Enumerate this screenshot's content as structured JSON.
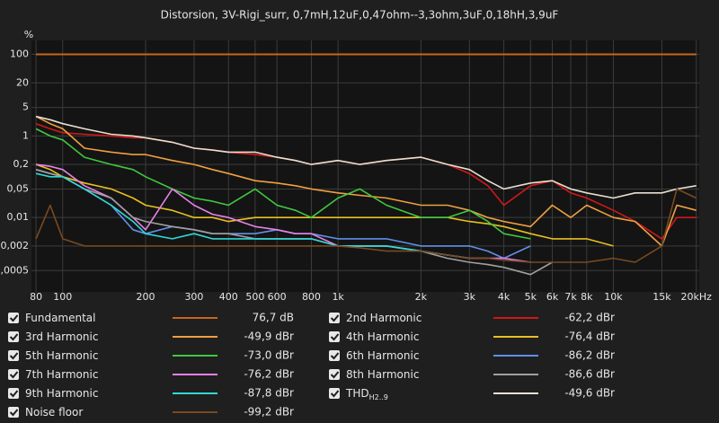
{
  "chart_data": {
    "type": "line",
    "title": "Distorsion, 3V-Rigi_surr, 0,7mH,12uF,0,47ohm--3,3ohm,3uF,0,18hH,3,9uF",
    "y_unit": "%",
    "log_x": true,
    "log_y": true,
    "grid": true,
    "xlim": [
      77,
      20500
    ],
    "ylim": [
      0.00015,
      220
    ],
    "xticks": [
      80,
      100,
      200,
      300,
      400,
      500,
      600,
      800,
      {
        "value": 1000,
        "label": "1k"
      },
      {
        "value": 2000,
        "label": "2k"
      },
      {
        "value": 3000,
        "label": "3k"
      },
      {
        "value": 4000,
        "label": "4k"
      },
      {
        "value": 5000,
        "label": "5k"
      },
      {
        "value": 6000,
        "label": "6k"
      },
      {
        "value": 7000,
        "label": "7k"
      },
      {
        "value": 8000,
        "label": "8k"
      },
      {
        "value": 10000,
        "label": "10k"
      },
      {
        "value": 15000,
        "label": "15k"
      },
      {
        "value": 20000,
        "label": "20kHz"
      }
    ],
    "yticks": [
      100,
      20,
      5,
      1,
      {
        "value": 0.2,
        "label": "0,2"
      },
      {
        "value": 0.05,
        "label": "0,05"
      },
      {
        "value": 0.01,
        "label": "0,01"
      },
      {
        "value": 0.002,
        "label": "0,002"
      },
      {
        "value": 0.0005,
        "label": "0,0005"
      }
    ],
    "x": [
      80,
      90,
      100,
      120,
      150,
      180,
      200,
      250,
      300,
      350,
      400,
      500,
      600,
      700,
      800,
      1000,
      1200,
      1500,
      2000,
      2500,
      3000,
      3500,
      4000,
      5000,
      6000,
      7000,
      8000,
      10000,
      12000,
      15000,
      17000,
      20000
    ],
    "series": [
      {
        "name": "Fundamental",
        "color": "#c8641e",
        "legend_value": "76,7 dB",
        "values": [
          100,
          100,
          100,
          100,
          100,
          100,
          100,
          100,
          100,
          100,
          100,
          100,
          100,
          100,
          100,
          100,
          100,
          100,
          100,
          100,
          100,
          100,
          100,
          100,
          100,
          100,
          100,
          100,
          100,
          100,
          100,
          100
        ]
      },
      {
        "name": "2nd Harmonic",
        "color": "#d01818",
        "legend_value": "-62,2 dBr",
        "values": [
          2,
          1.5,
          1.2,
          1.1,
          1.0,
          0.9,
          0.9,
          0.7,
          0.5,
          0.45,
          0.4,
          0.35,
          0.3,
          0.25,
          0.2,
          0.25,
          0.2,
          0.25,
          0.3,
          0.2,
          0.12,
          0.06,
          0.02,
          0.06,
          0.08,
          0.04,
          0.03,
          0.015,
          0.008,
          0.003,
          0.01,
          0.01
        ]
      },
      {
        "name": "3rd Harmonic",
        "color": "#f0a040",
        "legend_value": "-49,9 dBr",
        "values": [
          3,
          2,
          1.5,
          0.5,
          0.4,
          0.35,
          0.35,
          0.25,
          0.2,
          0.15,
          0.12,
          0.08,
          0.07,
          0.06,
          0.05,
          0.04,
          0.035,
          0.03,
          0.02,
          0.02,
          0.015,
          0.01,
          0.008,
          0.006,
          0.02,
          0.01,
          0.02,
          0.01,
          0.008,
          0.002,
          0.02,
          0.015
        ]
      },
      {
        "name": "4th Harmonic",
        "color": "#e8c020",
        "legend_value": "-76,4 dBr",
        "values": [
          0.2,
          0.15,
          0.1,
          0.07,
          0.05,
          0.03,
          0.02,
          0.015,
          0.01,
          0.01,
          0.008,
          0.01,
          0.01,
          0.01,
          0.01,
          0.01,
          0.01,
          0.01,
          0.01,
          0.01,
          0.008,
          0.007,
          0.006,
          0.004,
          0.003,
          0.003,
          0.003,
          0.002,
          null,
          null,
          null,
          null
        ]
      },
      {
        "name": "5th Harmonic",
        "color": "#40c840",
        "legend_value": "-73,0 dBr",
        "values": [
          1.5,
          1.0,
          0.8,
          0.3,
          0.2,
          0.15,
          0.1,
          0.05,
          0.03,
          0.025,
          0.02,
          0.05,
          0.02,
          0.015,
          0.01,
          0.03,
          0.05,
          0.02,
          0.01,
          0.01,
          0.015,
          0.008,
          0.004,
          0.003,
          null,
          null,
          null,
          null,
          null,
          null,
          null,
          null
        ]
      },
      {
        "name": "6th Harmonic",
        "color": "#6090e8",
        "legend_value": "-86,2 dBr",
        "values": [
          0.15,
          0.12,
          0.1,
          0.05,
          0.02,
          0.005,
          0.004,
          0.006,
          0.005,
          0.004,
          0.004,
          0.004,
          0.005,
          0.004,
          0.004,
          0.003,
          0.003,
          0.003,
          0.002,
          0.002,
          0.002,
          0.0015,
          0.001,
          0.002,
          null,
          null,
          null,
          null,
          null,
          null,
          null,
          null
        ]
      },
      {
        "name": "7th Harmonic",
        "color": "#e880e8",
        "legend_value": "-76,2 dBr",
        "values": [
          0.2,
          0.18,
          0.15,
          0.06,
          0.03,
          0.01,
          0.005,
          0.05,
          0.02,
          0.012,
          0.01,
          0.006,
          0.005,
          0.004,
          0.004,
          0.002,
          0.002,
          0.002,
          0.0015,
          0.0012,
          0.001,
          0.001,
          0.001,
          0.0008,
          null,
          null,
          null,
          null,
          null,
          null,
          null,
          null
        ]
      },
      {
        "name": "8th Harmonic",
        "color": "#a0a0a0",
        "legend_value": "-86,6 dBr",
        "values": [
          0.15,
          0.12,
          0.1,
          0.05,
          0.03,
          0.01,
          0.008,
          0.006,
          0.005,
          0.004,
          0.004,
          0.003,
          0.003,
          0.003,
          0.003,
          0.002,
          0.002,
          0.002,
          0.0015,
          0.001,
          0.0008,
          0.0007,
          0.0006,
          0.0004,
          0.0008,
          null,
          null,
          null,
          null,
          null,
          null,
          null
        ]
      },
      {
        "name": "9th Harmonic",
        "color": "#30d8d8",
        "legend_value": "-87,8 dBr",
        "values": [
          0.12,
          0.1,
          0.1,
          0.05,
          0.02,
          0.008,
          0.004,
          0.003,
          0.004,
          0.003,
          0.003,
          0.003,
          0.003,
          0.003,
          0.003,
          0.002,
          0.002,
          0.002,
          0.0015,
          0.0012,
          0.001,
          null,
          null,
          null,
          null,
          null,
          null,
          null,
          null,
          null,
          null,
          null
        ]
      },
      {
        "name": "THD",
        "name_sub": "H2..9",
        "color": "#e8e0d0",
        "legend_value": "-49,6 dBr",
        "values": [
          3,
          2.5,
          2,
          1.5,
          1.1,
          1.0,
          0.9,
          0.7,
          0.5,
          0.45,
          0.4,
          0.4,
          0.3,
          0.25,
          0.2,
          0.25,
          0.2,
          0.25,
          0.3,
          0.2,
          0.15,
          0.08,
          0.05,
          0.07,
          0.08,
          0.05,
          0.04,
          0.03,
          0.04,
          0.04,
          0.05,
          0.06
        ]
      },
      {
        "name": "Noise floor",
        "color": "#7a4a20",
        "legend_value": "-99,2 dBr",
        "values": [
          0.003,
          0.02,
          0.003,
          0.002,
          0.002,
          0.002,
          0.002,
          0.002,
          0.002,
          0.002,
          0.002,
          0.002,
          0.002,
          0.002,
          0.002,
          0.002,
          0.0018,
          0.0015,
          0.0015,
          0.0012,
          0.001,
          0.001,
          0.0009,
          0.0008,
          0.0008,
          0.0008,
          0.0008,
          0.001,
          0.0008,
          0.002,
          0.05,
          0.03
        ]
      }
    ]
  }
}
